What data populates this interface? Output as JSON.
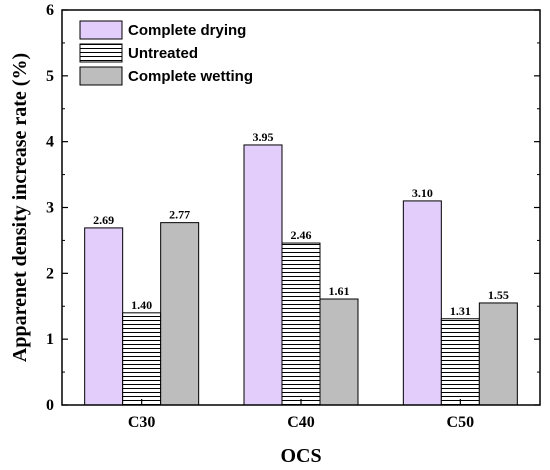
{
  "chart_data": {
    "type": "bar",
    "title": "",
    "xlabel": "OCS",
    "ylabel": "Apparenet density increase rate (%)",
    "categories": [
      "C30",
      "C40",
      "C50"
    ],
    "ylim": [
      0,
      6
    ],
    "yticks": [
      "0",
      "1",
      "2",
      "3",
      "4",
      "5",
      "6"
    ],
    "grid": false,
    "legend_position": "top-left",
    "series": [
      {
        "name": "Complete drying",
        "values": [
          2.69,
          3.95,
          3.1
        ],
        "labels": [
          "2.69",
          "3.95",
          "3.10"
        ],
        "color": "#e3cdfa",
        "pattern": "solid"
      },
      {
        "name": "Untreated",
        "values": [
          1.4,
          2.46,
          1.31
        ],
        "labels": [
          "1.40",
          "2.46",
          "1.31"
        ],
        "color": "#ffffff",
        "pattern": "horizontal-lines"
      },
      {
        "name": "Complete wetting",
        "values": [
          2.77,
          1.61,
          1.55
        ],
        "labels": [
          "2.77",
          "1.61",
          "1.55"
        ],
        "color": "#bdbdbd",
        "pattern": "solid"
      }
    ]
  }
}
